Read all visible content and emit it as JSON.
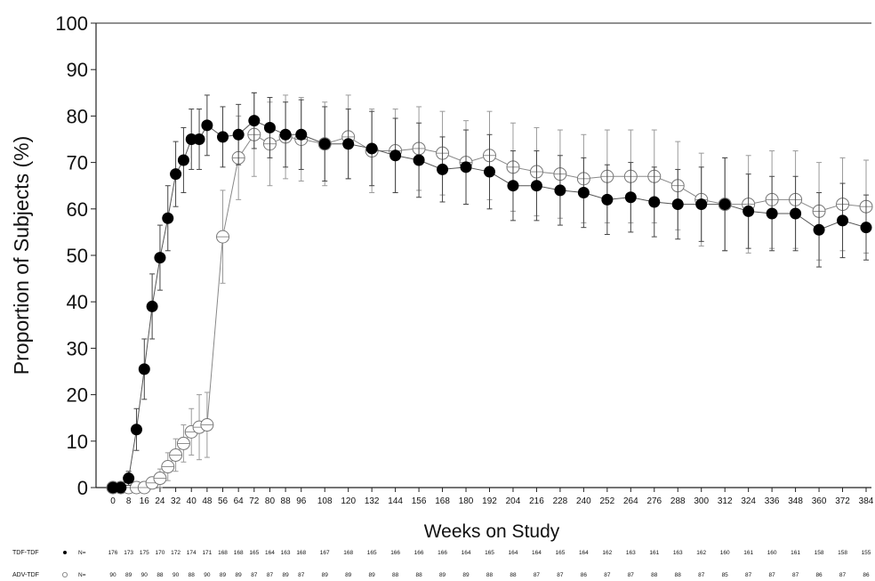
{
  "chart_data": {
    "type": "line",
    "ylabel": "Proportion of Subjects (%)",
    "xlabel": "Weeks on Study",
    "ylim": [
      0,
      100
    ],
    "yticks": [
      0,
      10,
      20,
      30,
      40,
      50,
      60,
      70,
      80,
      90,
      100
    ],
    "xticks": [
      0,
      8,
      16,
      24,
      32,
      40,
      48,
      56,
      64,
      72,
      80,
      88,
      96,
      108,
      120,
      132,
      144,
      156,
      168,
      180,
      192,
      204,
      216,
      228,
      240,
      252,
      264,
      276,
      288,
      300,
      312,
      324,
      336,
      348,
      360,
      372,
      384
    ],
    "grid": false,
    "series": [
      {
        "name": "TDF-TDF",
        "marker": "filled-circle",
        "color": "#000000",
        "x": [
          0,
          4,
          8,
          12,
          16,
          20,
          24,
          28,
          32,
          36,
          40,
          44,
          48,
          56,
          64,
          72,
          80,
          88,
          96,
          108,
          120,
          132,
          144,
          156,
          168,
          180,
          192,
          204,
          216,
          228,
          240,
          252,
          264,
          276,
          288,
          300,
          312,
          324,
          336,
          348,
          360,
          372,
          384
        ],
        "y": [
          0,
          0,
          2,
          12.5,
          25.5,
          39,
          49.5,
          58,
          67.5,
          70.5,
          75,
          75,
          78,
          75.5,
          76,
          79,
          77.5,
          76,
          76,
          74,
          74,
          73,
          71.5,
          70.5,
          68.5,
          69,
          68,
          65,
          65,
          64,
          63.5,
          62,
          62.5,
          61.5,
          61,
          61,
          61,
          59.5,
          59,
          59,
          55.5,
          57.5,
          56
        ],
        "err": [
          0,
          0,
          1.5,
          4.5,
          6.5,
          7,
          7,
          7,
          7,
          7,
          6.5,
          6.5,
          6.5,
          6.5,
          6.5,
          6,
          6.5,
          7,
          7.5,
          8,
          7.5,
          8,
          8,
          8,
          7,
          8,
          8,
          7.5,
          7.5,
          7.5,
          7.5,
          7.5,
          7.5,
          7.5,
          7.5,
          8,
          10,
          8,
          8,
          8,
          8,
          8,
          7
        ]
      },
      {
        "name": "ADV-TDF",
        "marker": "open-circle",
        "color": "#555555",
        "x": [
          0,
          4,
          8,
          12,
          16,
          20,
          24,
          28,
          32,
          36,
          40,
          44,
          48,
          56,
          64,
          72,
          80,
          88,
          96,
          108,
          120,
          132,
          144,
          156,
          168,
          180,
          192,
          204,
          216,
          228,
          240,
          252,
          264,
          276,
          288,
          300,
          312,
          324,
          336,
          348,
          360,
          372,
          384
        ],
        "y": [
          0,
          0,
          0,
          0,
          0,
          1,
          2,
          4.5,
          7,
          9.5,
          12,
          13,
          13.5,
          54,
          71,
          76,
          74,
          75.5,
          75,
          74,
          75.5,
          72.5,
          72.5,
          73,
          72,
          70,
          71.5,
          69,
          68,
          67.5,
          66.5,
          67,
          67,
          67,
          65,
          62,
          61,
          61,
          62,
          62,
          59.5,
          61,
          60.5
        ],
        "err": [
          0,
          0,
          0,
          0,
          0,
          1,
          2,
          3,
          3.5,
          4,
          5,
          7,
          7,
          10,
          9,
          9,
          9,
          9,
          9,
          9,
          9,
          9,
          9,
          9,
          9,
          9,
          9.5,
          9.5,
          9.5,
          9.5,
          9.5,
          10,
          10,
          10,
          9.5,
          10,
          10,
          10.5,
          10.5,
          10.5,
          10.5,
          10,
          10
        ]
      }
    ],
    "n_at_risk": {
      "label": "N=",
      "rows": [
        {
          "name": "TDF-TDF",
          "values": [
            "176",
            "173",
            "175",
            "170",
            "172",
            "174",
            "171",
            "168",
            "168",
            "165",
            "164",
            "163",
            "168",
            "167",
            "168",
            "165",
            "166",
            "166",
            "166",
            "164",
            "165",
            "164",
            "164",
            "165",
            "164",
            "162",
            "163",
            "161",
            "163",
            "162",
            "160",
            "161",
            "160",
            "161",
            "158",
            "158",
            "155"
          ]
        },
        {
          "name": "ADV-TDF",
          "values": [
            "90",
            "89",
            "90",
            "88",
            "90",
            "88",
            "90",
            "89",
            "89",
            "87",
            "87",
            "89",
            "87",
            "89",
            "89",
            "89",
            "88",
            "88",
            "89",
            "89",
            "88",
            "88",
            "87",
            "87",
            "86",
            "87",
            "87",
            "88",
            "88",
            "87",
            "85",
            "87",
            "87",
            "87",
            "86",
            "87",
            "86"
          ]
        }
      ]
    }
  }
}
